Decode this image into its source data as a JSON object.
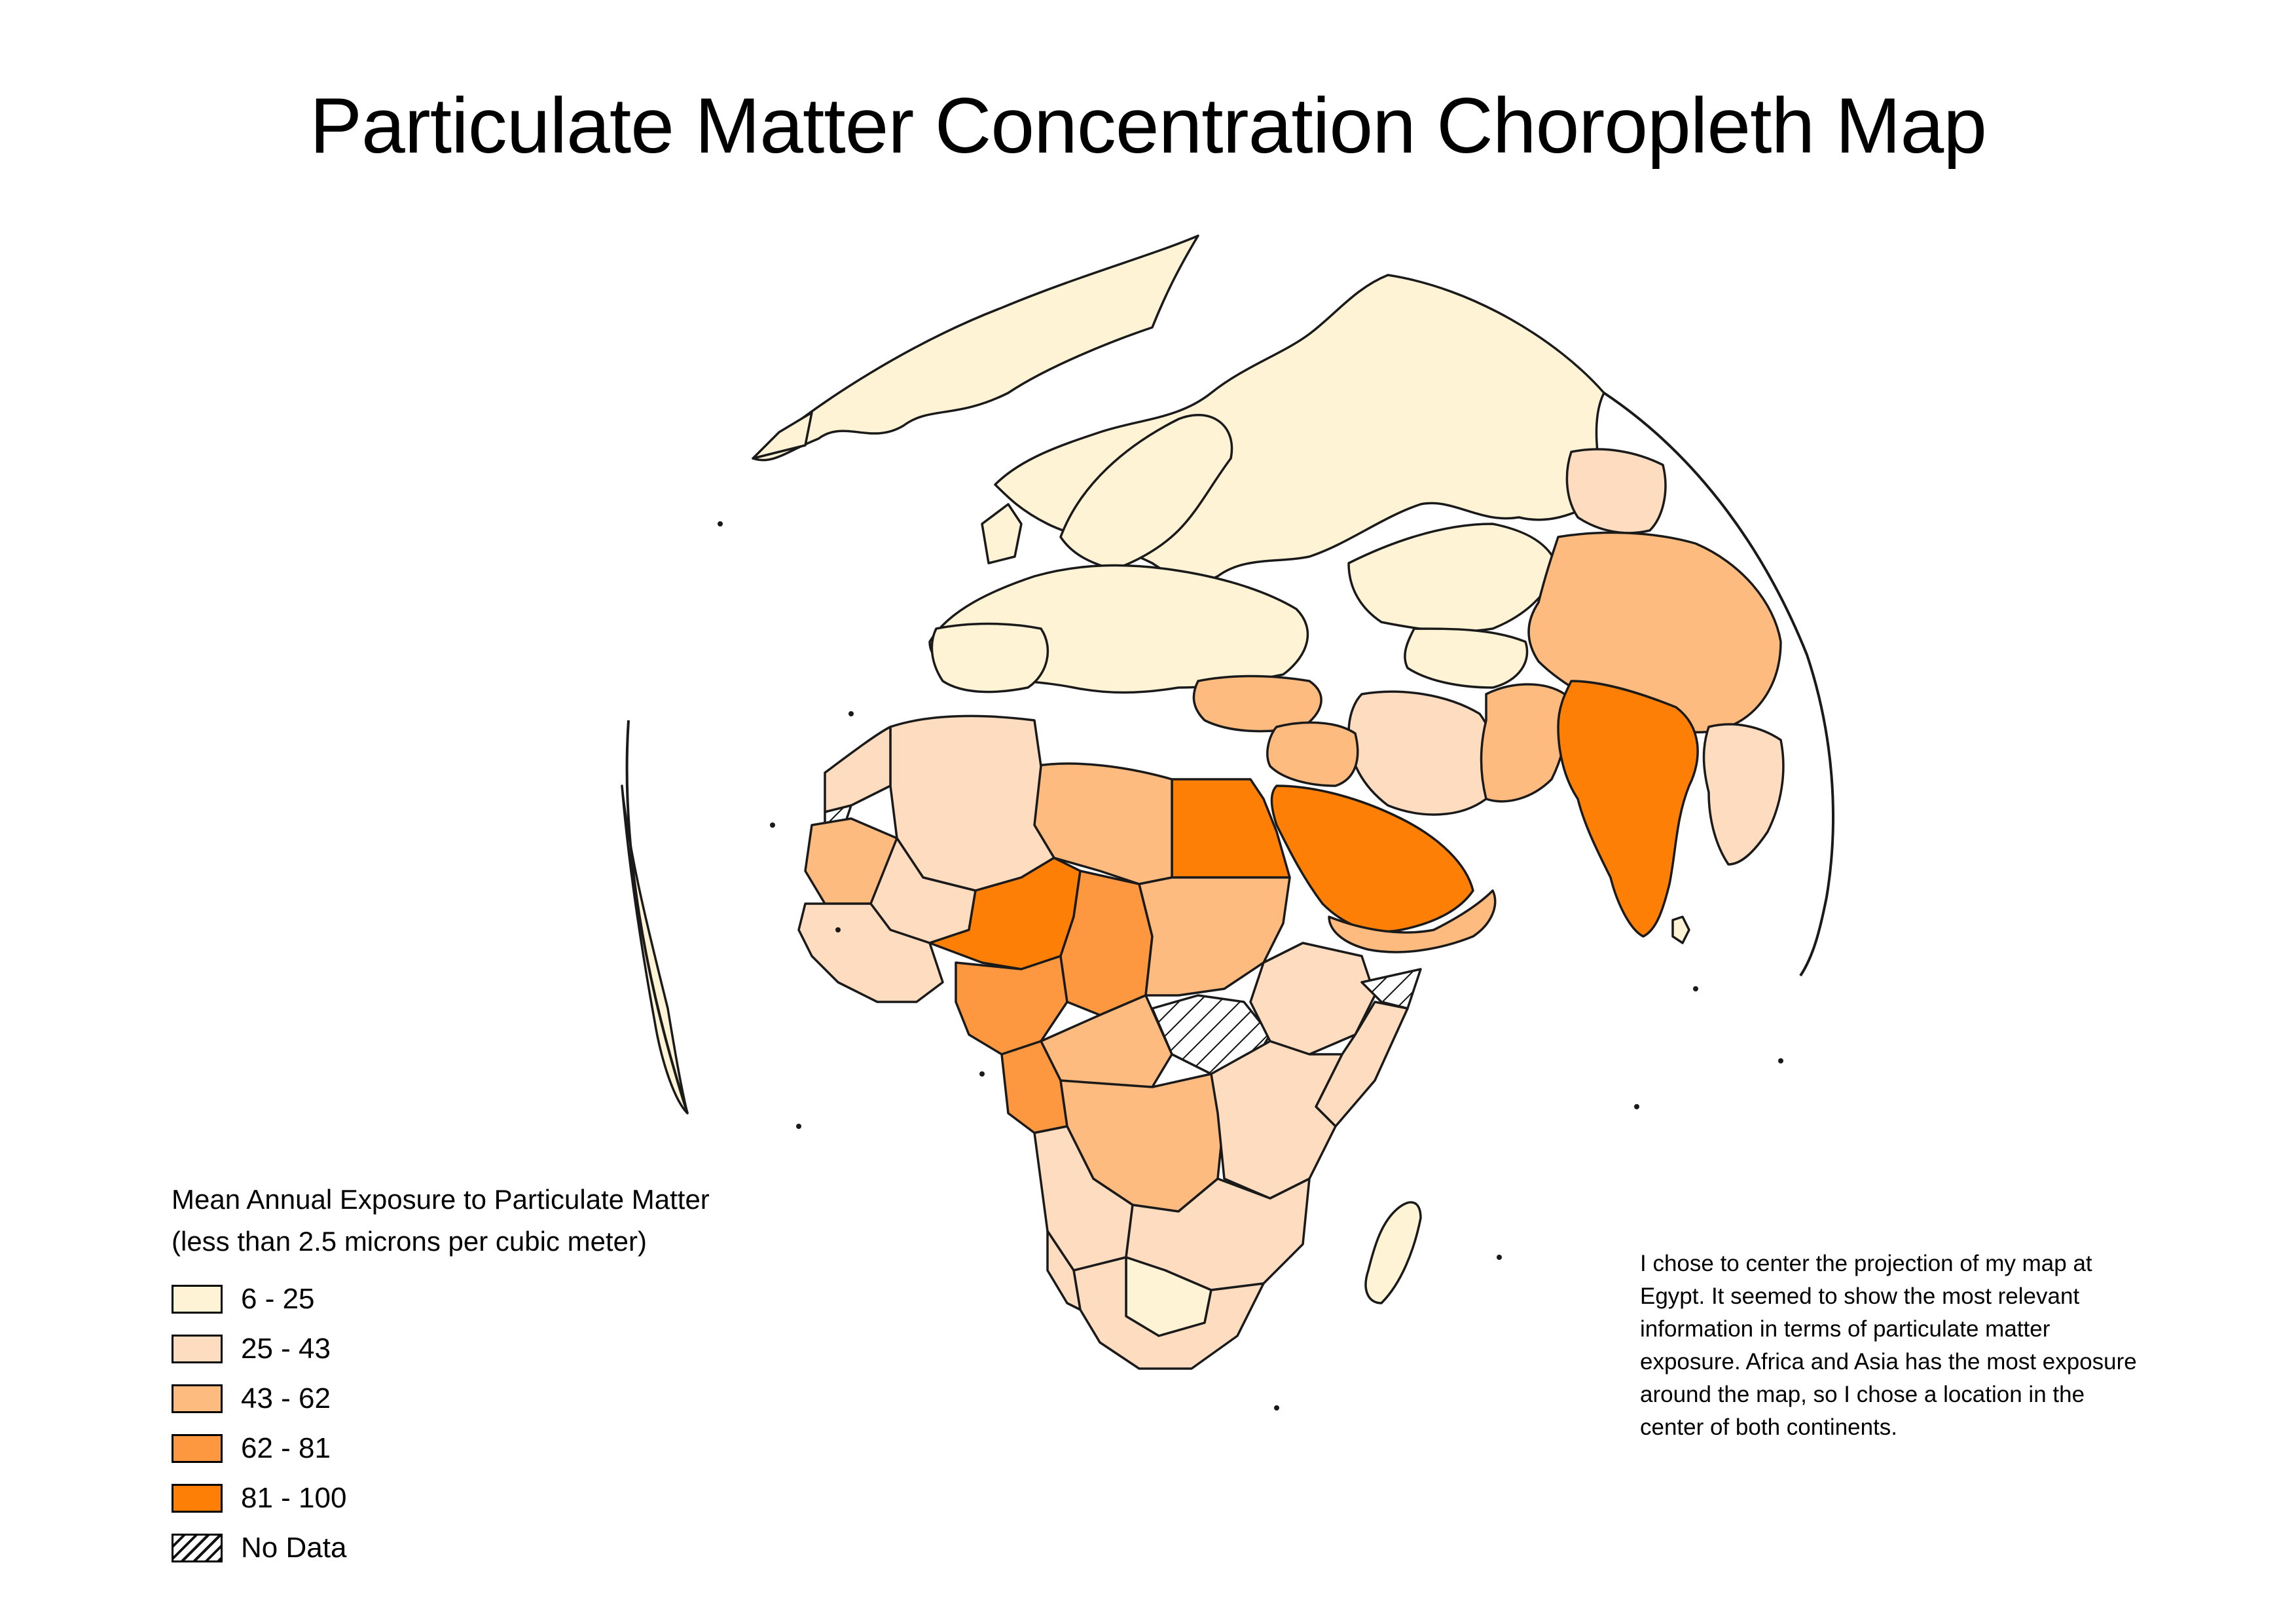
{
  "title": "Particulate Matter Concentration Choropleth Map",
  "legend": {
    "title_line1": "Mean Annual Exposure to Particulate Matter",
    "title_line2": "(less than 2.5 microns per cubic meter)",
    "classes": [
      {
        "label": "6 - 25",
        "color": "#fff3d6"
      },
      {
        "label": "25 - 43",
        "color": "#fddcc0"
      },
      {
        "label": "43 - 62",
        "color": "#fdbb80"
      },
      {
        "label": "62 - 81",
        "color": "#fd9840"
      },
      {
        "label": "81 - 100",
        "color": "#fd7f05"
      },
      {
        "label": "No Data",
        "color": "hatch"
      }
    ]
  },
  "note": "I chose to center the projection of my map at Egypt. It seemed to show the most relevant information in terms of particulate matter exposure. Africa and Asia has the most exposure around the map, so I chose a location in the center of both continents.",
  "map": {
    "projection_center": "Egypt",
    "regions": [
      {
        "name": "Greenland",
        "class": "6 - 25"
      },
      {
        "name": "Europe",
        "class": "6 - 25"
      },
      {
        "name": "Russia",
        "class": "6 - 25"
      },
      {
        "name": "Kazakhstan",
        "class": "6 - 25"
      },
      {
        "name": "Mongolia",
        "class": "25 - 43"
      },
      {
        "name": "China",
        "class": "43 - 62"
      },
      {
        "name": "India",
        "class": "81 - 100"
      },
      {
        "name": "Pakistan",
        "class": "43 - 62"
      },
      {
        "name": "Iran",
        "class": "25 - 43"
      },
      {
        "name": "Saudi Arabia",
        "class": "81 - 100"
      },
      {
        "name": "Egypt",
        "class": "81 - 100"
      },
      {
        "name": "Niger",
        "class": "81 - 100"
      },
      {
        "name": "Chad",
        "class": "62 - 81"
      },
      {
        "name": "Nigeria",
        "class": "62 - 81"
      },
      {
        "name": "Libya",
        "class": "43 - 62"
      },
      {
        "name": "Algeria",
        "class": "25 - 43"
      },
      {
        "name": "Mauritania",
        "class": "43 - 62"
      },
      {
        "name": "Sudan",
        "class": "43 - 62"
      },
      {
        "name": "South Sudan",
        "class": "No Data"
      },
      {
        "name": "Somalia",
        "class": "No Data"
      },
      {
        "name": "Ethiopia",
        "class": "25 - 43"
      },
      {
        "name": "DR Congo",
        "class": "43 - 62"
      },
      {
        "name": "Southern Africa",
        "class": "25 - 43"
      },
      {
        "name": "Madagascar",
        "class": "6 - 25"
      },
      {
        "name": "Turkey",
        "class": "43 - 62"
      }
    ]
  }
}
